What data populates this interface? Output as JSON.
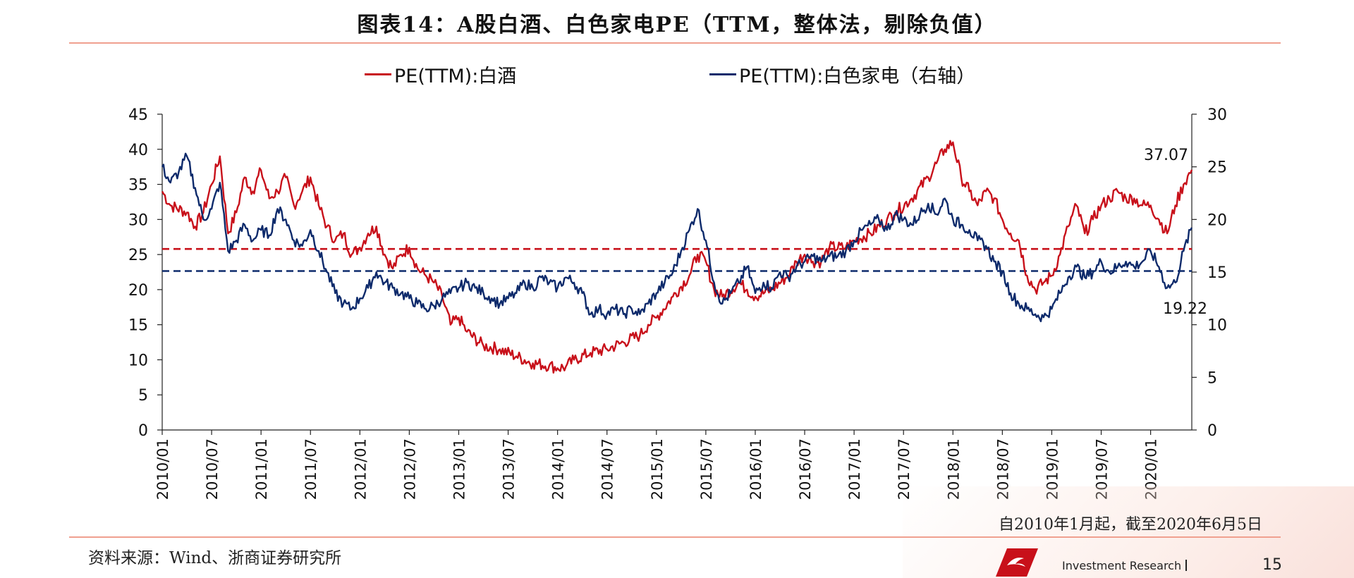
{
  "header": {
    "title": "图表14：A股白酒、白色家电PE（TTM，整体法，剔除负值）"
  },
  "legend": {
    "liquor": "PE(TTM):白酒",
    "appliance": "PE(TTM):白色家电（右轴）"
  },
  "colors": {
    "liquor": "#c8101a",
    "appliance": "#0d2a6b",
    "rule": "#f0a08f"
  },
  "chart_data": {
    "type": "line",
    "x_ticks": [
      "2010/01",
      "2010/07",
      "2011/01",
      "2011/07",
      "2012/01",
      "2012/07",
      "2013/01",
      "2013/07",
      "2014/01",
      "2014/07",
      "2015/01",
      "2015/07",
      "2016/01",
      "2016/07",
      "2017/01",
      "2017/07",
      "2018/01",
      "2018/07",
      "2019/01",
      "2019/07",
      "2020/01"
    ],
    "x_range": [
      "2010/01",
      "2020/06"
    ],
    "y_left": {
      "lim": [
        0,
        45
      ],
      "ticks": [
        0,
        5,
        10,
        15,
        20,
        25,
        30,
        35,
        40,
        45
      ]
    },
    "y_right": {
      "lim": [
        0,
        30
      ],
      "ticks": [
        0,
        5,
        10,
        15,
        20,
        25,
        30
      ]
    },
    "series": [
      {
        "name": "PE(TTM):白酒",
        "axis": "left",
        "color": "#c8101a",
        "reference_line": 25.8,
        "points": [
          [
            "2010/01",
            34
          ],
          [
            "2010/02",
            32
          ],
          [
            "2010/04",
            31
          ],
          [
            "2010/05",
            29
          ],
          [
            "2010/06",
            31
          ],
          [
            "2010/07",
            35
          ],
          [
            "2010/08",
            39
          ],
          [
            "2010/09",
            28
          ],
          [
            "2010/10",
            31
          ],
          [
            "2010/11",
            36
          ],
          [
            "2010/12",
            34
          ],
          [
            "2011/01",
            37
          ],
          [
            "2011/02",
            33
          ],
          [
            "2011/03",
            34
          ],
          [
            "2011/04",
            36
          ],
          [
            "2011/05",
            32
          ],
          [
            "2011/06",
            34
          ],
          [
            "2011/07",
            36
          ],
          [
            "2011/08",
            32
          ],
          [
            "2011/09",
            29
          ],
          [
            "2011/10",
            27
          ],
          [
            "2011/11",
            28
          ],
          [
            "2011/12",
            25
          ],
          [
            "2012/01",
            26
          ],
          [
            "2012/02",
            28
          ],
          [
            "2012/03",
            29
          ],
          [
            "2012/04",
            25
          ],
          [
            "2012/05",
            23
          ],
          [
            "2012/06",
            25
          ],
          [
            "2012/07",
            26
          ],
          [
            "2012/08",
            23
          ],
          [
            "2012/09",
            22
          ],
          [
            "2012/10",
            21
          ],
          [
            "2012/11",
            19
          ],
          [
            "2012/12",
            15
          ],
          [
            "2013/01",
            16
          ],
          [
            "2013/02",
            14
          ],
          [
            "2013/04",
            12
          ],
          [
            "2013/06",
            11.5
          ],
          [
            "2013/08",
            10.5
          ],
          [
            "2013/10",
            9.5
          ],
          [
            "2013/12",
            9.2
          ],
          [
            "2014/01",
            8.8
          ],
          [
            "2014/02",
            9
          ],
          [
            "2014/03",
            10
          ],
          [
            "2014/05",
            11
          ],
          [
            "2014/07",
            11.5
          ],
          [
            "2014/09",
            12.5
          ],
          [
            "2014/11",
            13.5
          ],
          [
            "2014/12",
            15
          ],
          [
            "2015/01",
            16
          ],
          [
            "2015/03",
            19
          ],
          [
            "2015/05",
            22
          ],
          [
            "2015/06",
            25
          ],
          [
            "2015/07",
            24
          ],
          [
            "2015/08",
            20
          ],
          [
            "2015/09",
            19
          ],
          [
            "2015/11",
            21
          ],
          [
            "2015/12",
            20
          ],
          [
            "2016/01",
            19
          ],
          [
            "2016/03",
            20
          ],
          [
            "2016/05",
            22
          ],
          [
            "2016/06",
            24
          ],
          [
            "2016/07",
            25
          ],
          [
            "2016/08",
            24
          ],
          [
            "2016/09",
            24
          ],
          [
            "2016/10",
            26
          ],
          [
            "2016/12",
            26
          ],
          [
            "2017/01",
            27
          ],
          [
            "2017/03",
            28
          ],
          [
            "2017/05",
            30
          ],
          [
            "2017/06",
            31
          ],
          [
            "2017/08",
            33
          ],
          [
            "2017/10",
            36
          ],
          [
            "2017/11",
            38
          ],
          [
            "2017/12",
            40
          ],
          [
            "2018/01",
            41
          ],
          [
            "2018/02",
            36
          ],
          [
            "2018/03",
            34
          ],
          [
            "2018/04",
            32
          ],
          [
            "2018/05",
            34
          ],
          [
            "2018/06",
            33
          ],
          [
            "2018/07",
            30
          ],
          [
            "2018/08",
            28
          ],
          [
            "2018/09",
            27
          ],
          [
            "2018/10",
            22
          ],
          [
            "2018/11",
            20
          ],
          [
            "2018/12",
            21
          ],
          [
            "2019/01",
            22
          ],
          [
            "2019/02",
            25
          ],
          [
            "2019/03",
            29
          ],
          [
            "2019/04",
            32
          ],
          [
            "2019/05",
            28
          ],
          [
            "2019/06",
            30
          ],
          [
            "2019/07",
            32
          ],
          [
            "2019/08",
            33
          ],
          [
            "2019/09",
            34
          ],
          [
            "2019/10",
            33
          ],
          [
            "2019/11",
            33
          ],
          [
            "2019/12",
            32
          ],
          [
            "2020/01",
            32
          ],
          [
            "2020/02",
            30
          ],
          [
            "2020/03",
            28
          ],
          [
            "2020/04",
            32
          ],
          [
            "2020/05",
            35
          ],
          [
            "2020/06",
            37.07
          ]
        ],
        "end_label": "37.07"
      },
      {
        "name": "PE(TTM):白色家电（右轴）",
        "axis": "right",
        "color": "#0d2a6b",
        "reference_line": 15.1,
        "points": [
          [
            "2010/01",
            25
          ],
          [
            "2010/02",
            23.5
          ],
          [
            "2010/03",
            24.5
          ],
          [
            "2010/04",
            26
          ],
          [
            "2010/05",
            23
          ],
          [
            "2010/06",
            20
          ],
          [
            "2010/07",
            21
          ],
          [
            "2010/08",
            23.5
          ],
          [
            "2010/09",
            17
          ],
          [
            "2010/10",
            18
          ],
          [
            "2010/11",
            19.5
          ],
          [
            "2010/12",
            18
          ],
          [
            "2011/01",
            19
          ],
          [
            "2011/02",
            18.5
          ],
          [
            "2011/03",
            21
          ],
          [
            "2011/04",
            20
          ],
          [
            "2011/05",
            18
          ],
          [
            "2011/06",
            17.5
          ],
          [
            "2011/07",
            19
          ],
          [
            "2011/08",
            17
          ],
          [
            "2011/09",
            15
          ],
          [
            "2011/10",
            13
          ],
          [
            "2011/11",
            12
          ],
          [
            "2011/12",
            11.5
          ],
          [
            "2012/01",
            12.5
          ],
          [
            "2012/02",
            13.5
          ],
          [
            "2012/03",
            15
          ],
          [
            "2012/04",
            14
          ],
          [
            "2012/05",
            13.5
          ],
          [
            "2012/06",
            13
          ],
          [
            "2012/07",
            12.5
          ],
          [
            "2012/08",
            12
          ],
          [
            "2012/09",
            11.5
          ],
          [
            "2012/10",
            11.8
          ],
          [
            "2012/11",
            12.5
          ],
          [
            "2012/12",
            13
          ],
          [
            "2013/01",
            13.5
          ],
          [
            "2013/02",
            14
          ],
          [
            "2013/03",
            13.5
          ],
          [
            "2013/04",
            13
          ],
          [
            "2013/05",
            12.5
          ],
          [
            "2013/06",
            12
          ],
          [
            "2013/07",
            12.5
          ],
          [
            "2013/08",
            13
          ],
          [
            "2013/09",
            14
          ],
          [
            "2013/10",
            13.5
          ],
          [
            "2013/11",
            14.5
          ],
          [
            "2013/12",
            14
          ],
          [
            "2014/01",
            13.5
          ],
          [
            "2014/02",
            14.5
          ],
          [
            "2014/03",
            14
          ],
          [
            "2014/04",
            13
          ],
          [
            "2014/05",
            11
          ],
          [
            "2014/06",
            11.5
          ],
          [
            "2014/07",
            11
          ],
          [
            "2014/08",
            11.5
          ],
          [
            "2014/09",
            11
          ],
          [
            "2014/10",
            11.5
          ],
          [
            "2014/11",
            11
          ],
          [
            "2014/12",
            12
          ],
          [
            "2015/01",
            13
          ],
          [
            "2015/02",
            14
          ],
          [
            "2015/03",
            15
          ],
          [
            "2015/04",
            17
          ],
          [
            "2015/05",
            19
          ],
          [
            "2015/06",
            21
          ],
          [
            "2015/07",
            18
          ],
          [
            "2015/08",
            14
          ],
          [
            "2015/09",
            12
          ],
          [
            "2015/10",
            13
          ],
          [
            "2015/11",
            14
          ],
          [
            "2015/12",
            15.5
          ],
          [
            "2016/01",
            13
          ],
          [
            "2016/02",
            14
          ],
          [
            "2016/03",
            13.5
          ],
          [
            "2016/04",
            15
          ],
          [
            "2016/05",
            14.5
          ],
          [
            "2016/06",
            15.5
          ],
          [
            "2016/07",
            16
          ],
          [
            "2016/08",
            16.5
          ],
          [
            "2016/09",
            16
          ],
          [
            "2016/10",
            16.5
          ],
          [
            "2016/11",
            16.5
          ],
          [
            "2016/12",
            17
          ],
          [
            "2017/01",
            18
          ],
          [
            "2017/02",
            19
          ],
          [
            "2017/03",
            19.5
          ],
          [
            "2017/04",
            20
          ],
          [
            "2017/05",
            19
          ],
          [
            "2017/06",
            20.5
          ],
          [
            "2017/07",
            20
          ],
          [
            "2017/08",
            19.5
          ],
          [
            "2017/09",
            20.5
          ],
          [
            "2017/10",
            21.5
          ],
          [
            "2017/11",
            20.5
          ],
          [
            "2017/12",
            22
          ],
          [
            "2018/01",
            20
          ],
          [
            "2018/02",
            19.5
          ],
          [
            "2018/03",
            19
          ],
          [
            "2018/04",
            18
          ],
          [
            "2018/05",
            17.5
          ],
          [
            "2018/06",
            16
          ],
          [
            "2018/07",
            15
          ],
          [
            "2018/08",
            13
          ],
          [
            "2018/09",
            12
          ],
          [
            "2018/10",
            11.5
          ],
          [
            "2018/11",
            11
          ],
          [
            "2018/12",
            10.7
          ],
          [
            "2019/01",
            11.5
          ],
          [
            "2019/02",
            13
          ],
          [
            "2019/03",
            14.5
          ],
          [
            "2019/04",
            15.5
          ],
          [
            "2019/05",
            14.5
          ],
          [
            "2019/06",
            15
          ],
          [
            "2019/07",
            16
          ],
          [
            "2019/08",
            15
          ],
          [
            "2019/09",
            15.5
          ],
          [
            "2019/10",
            16
          ],
          [
            "2019/11",
            15.5
          ],
          [
            "2019/12",
            16
          ],
          [
            "2020/01",
            17
          ],
          [
            "2020/02",
            15.5
          ],
          [
            "2020/03",
            13.5
          ],
          [
            "2020/04",
            14
          ],
          [
            "2020/05",
            17
          ],
          [
            "2020/06",
            19.22
          ]
        ],
        "end_label": "19.22"
      }
    ]
  },
  "note": "自2010年1月起，截至2020年6月5日",
  "source": "资料来源：Wind、浙商证券研究所",
  "footer": {
    "brand": "Investment Research",
    "page": "15"
  }
}
